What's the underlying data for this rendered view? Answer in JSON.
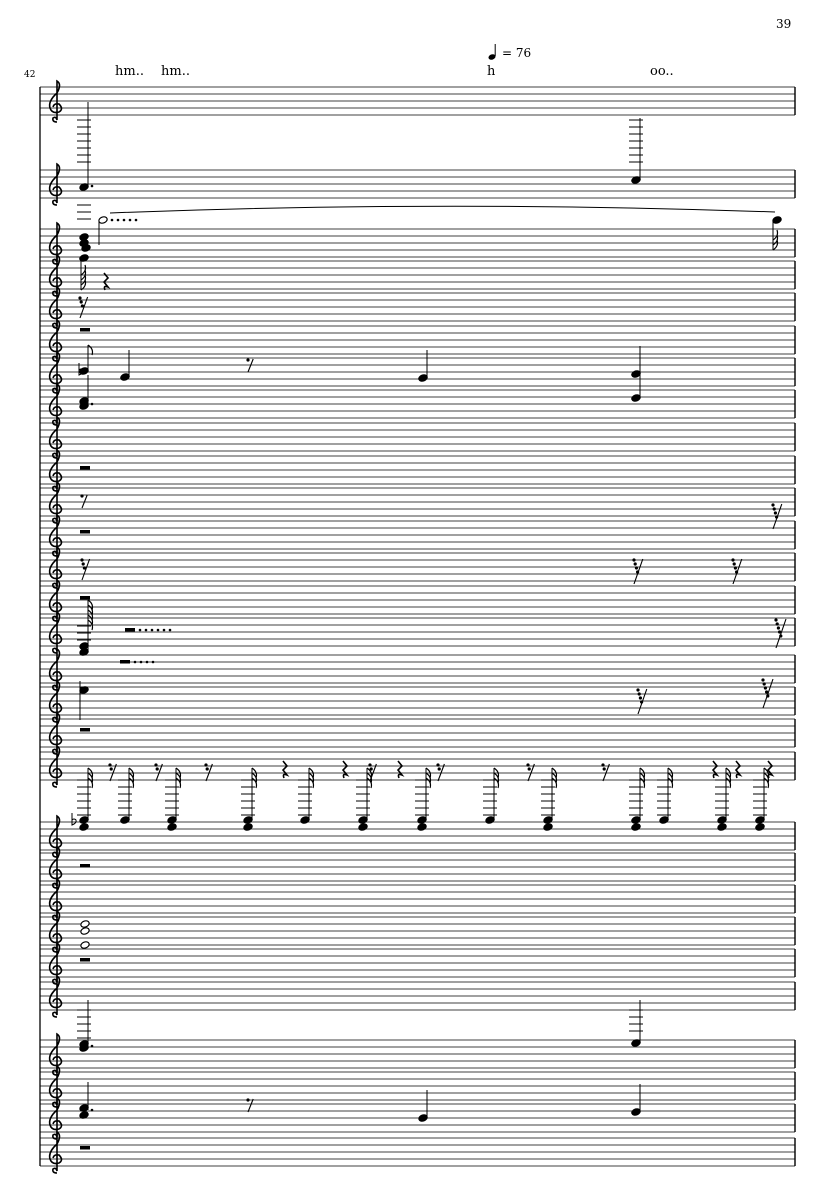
{
  "page": {
    "page_number": "39",
    "measure_number": "42"
  },
  "tempo": {
    "note_icon": "quarter-note-icon",
    "marking": "= 76"
  },
  "lyrics": [
    {
      "text": "hm.."
    },
    {
      "text": "hm.."
    },
    {
      "text": "h"
    },
    {
      "text": "oo.."
    }
  ],
  "score": {
    "clef": "treble",
    "staff_count": 29,
    "ink_color": "#000000",
    "staff_line_color": "#000000"
  }
}
